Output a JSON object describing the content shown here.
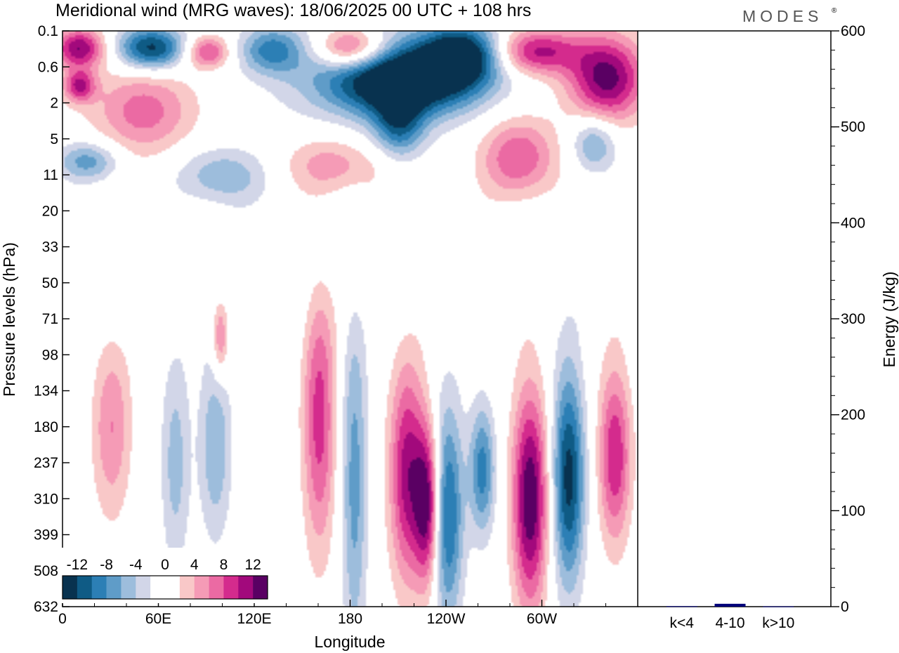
{
  "title": "Meridional wind (MRG waves):  18/06/2025  00 UTC  + 108 hrs",
  "logo": "MODES",
  "colors": {
    "neg12": "#08324f",
    "neg10": "#0f5b85",
    "neg8": "#2c7fb5",
    "neg6": "#5f9cc8",
    "neg4": "#9dbddc",
    "neg2": "#d2d6e8",
    "zero": "#ffffff",
    "pos2": "#f9c8c8",
    "pos4": "#f59bb6",
    "pos6": "#eb6aa3",
    "pos8": "#d42b8d",
    "pos10": "#a2097c",
    "pos12": "#5a0063",
    "bar": "#00007a"
  },
  "chart_data": [
    {
      "type": "heatmap",
      "variable": "Meridional wind (MRG waves)",
      "xlabel": "Longitude",
      "ylabel": "Pressure levels (hPa)",
      "x_ticks": [
        "0",
        "60E",
        "120E",
        "180",
        "120W",
        "60W"
      ],
      "x_tick_degrees": [
        0,
        60,
        120,
        180,
        240,
        300
      ],
      "xlim": [
        0,
        360
      ],
      "y_ticks": [
        "0.1",
        "0.6",
        "2",
        "5",
        "11",
        "20",
        "33",
        "50",
        "71",
        "98",
        "134",
        "180",
        "237",
        "310",
        "399",
        "508",
        "632"
      ],
      "ylim": [
        "0.1",
        "632"
      ],
      "colorbar": {
        "labels": [
          "-12",
          "-8",
          "-4",
          "0",
          "4",
          "8",
          "12"
        ],
        "levels": [
          -12,
          -10,
          -8,
          -6,
          -4,
          -2,
          2,
          4,
          6,
          8,
          10,
          12
        ]
      },
      "features": [
        {
          "lon": 10,
          "p_index": 0.45,
          "value": 12,
          "w": 16,
          "h": 0.55
        },
        {
          "lon": 55,
          "p_index": 0.45,
          "value": -13,
          "w": 22,
          "h": 0.6
        },
        {
          "lon": 90,
          "p_index": 0.55,
          "value": 9,
          "w": 14,
          "h": 0.45
        },
        {
          "lon": 130,
          "p_index": 0.5,
          "value": -8,
          "w": 20,
          "h": 0.65
        },
        {
          "lon": 180,
          "p_index": 0.45,
          "value": 12,
          "w": 22,
          "h": 0.6
        },
        {
          "lon": 215,
          "p_index": 1.4,
          "value": -12,
          "w": 45,
          "h": 0.9
        },
        {
          "lon": 200,
          "p_index": 1.1,
          "value": -7,
          "w": 60,
          "h": 1.4
        },
        {
          "lon": 210,
          "p_index": 2.6,
          "value": -9,
          "w": 16,
          "h": 1.0
        },
        {
          "lon": 250,
          "p_index": 0.6,
          "value": -13,
          "w": 25,
          "h": 0.8
        },
        {
          "lon": 295,
          "p_index": 0.55,
          "value": 11,
          "w": 28,
          "h": 0.65
        },
        {
          "lon": 340,
          "p_index": 1.3,
          "value": 13,
          "w": 24,
          "h": 1.2
        },
        {
          "lon": 10,
          "p_index": 1.5,
          "value": 10,
          "w": 10,
          "h": 0.45
        },
        {
          "lon": 50,
          "p_index": 2.2,
          "value": 7,
          "w": 32,
          "h": 1.2
        },
        {
          "lon": 15,
          "p_index": 3.6,
          "value": -7,
          "w": 20,
          "h": 0.55
        },
        {
          "lon": 100,
          "p_index": 4.0,
          "value": -6,
          "w": 28,
          "h": 0.8
        },
        {
          "lon": 170,
          "p_index": 3.7,
          "value": 5,
          "w": 35,
          "h": 0.8
        },
        {
          "lon": 285,
          "p_index": 3.5,
          "value": 8,
          "w": 24,
          "h": 1.1
        },
        {
          "lon": 332,
          "p_index": 3.1,
          "value": -7,
          "w": 14,
          "h": 0.8
        },
        {
          "lon": 30,
          "p_index": 11.0,
          "value": 6,
          "w": 12,
          "h": 2.5
        },
        {
          "lon": 70,
          "p_index": 12.0,
          "value": -5,
          "w": 9,
          "h": 3.0
        },
        {
          "lon": 95,
          "p_index": 11.5,
          "value": -6,
          "w": 10,
          "h": 2.6
        },
        {
          "lon": 98,
          "p_index": 8.5,
          "value": 7,
          "w": 5,
          "h": 1.1
        },
        {
          "lon": 160,
          "p_index": 10.8,
          "value": 9,
          "w": 10,
          "h": 3.6
        },
        {
          "lon": 182,
          "p_index": 12.5,
          "value": -7,
          "w": 8,
          "h": 4.8
        },
        {
          "lon": 215,
          "p_index": 12.3,
          "value": 11,
          "w": 11,
          "h": 3.0
        },
        {
          "lon": 228,
          "p_index": 13.2,
          "value": 13,
          "w": 8,
          "h": 2.2
        },
        {
          "lon": 240,
          "p_index": 13.4,
          "value": -11,
          "w": 10,
          "h": 3.0
        },
        {
          "lon": 262,
          "p_index": 12.2,
          "value": -9,
          "w": 8,
          "h": 1.8
        },
        {
          "lon": 292,
          "p_index": 13.0,
          "value": 14,
          "w": 11,
          "h": 3.0
        },
        {
          "lon": 316,
          "p_index": 12.4,
          "value": -13,
          "w": 10,
          "h": 3.0
        },
        {
          "lon": 345,
          "p_index": 11.8,
          "value": 10,
          "w": 10,
          "h": 2.4
        }
      ]
    },
    {
      "type": "bar",
      "ylabel": "Energy (J/kg)",
      "categories": [
        "k<4",
        "4-10",
        "k>10"
      ],
      "values": [
        0.5,
        3,
        0.3
      ],
      "ylim": [
        0,
        600
      ],
      "y_ticks": [
        "0",
        "100",
        "200",
        "300",
        "400",
        "500",
        "600"
      ]
    }
  ]
}
